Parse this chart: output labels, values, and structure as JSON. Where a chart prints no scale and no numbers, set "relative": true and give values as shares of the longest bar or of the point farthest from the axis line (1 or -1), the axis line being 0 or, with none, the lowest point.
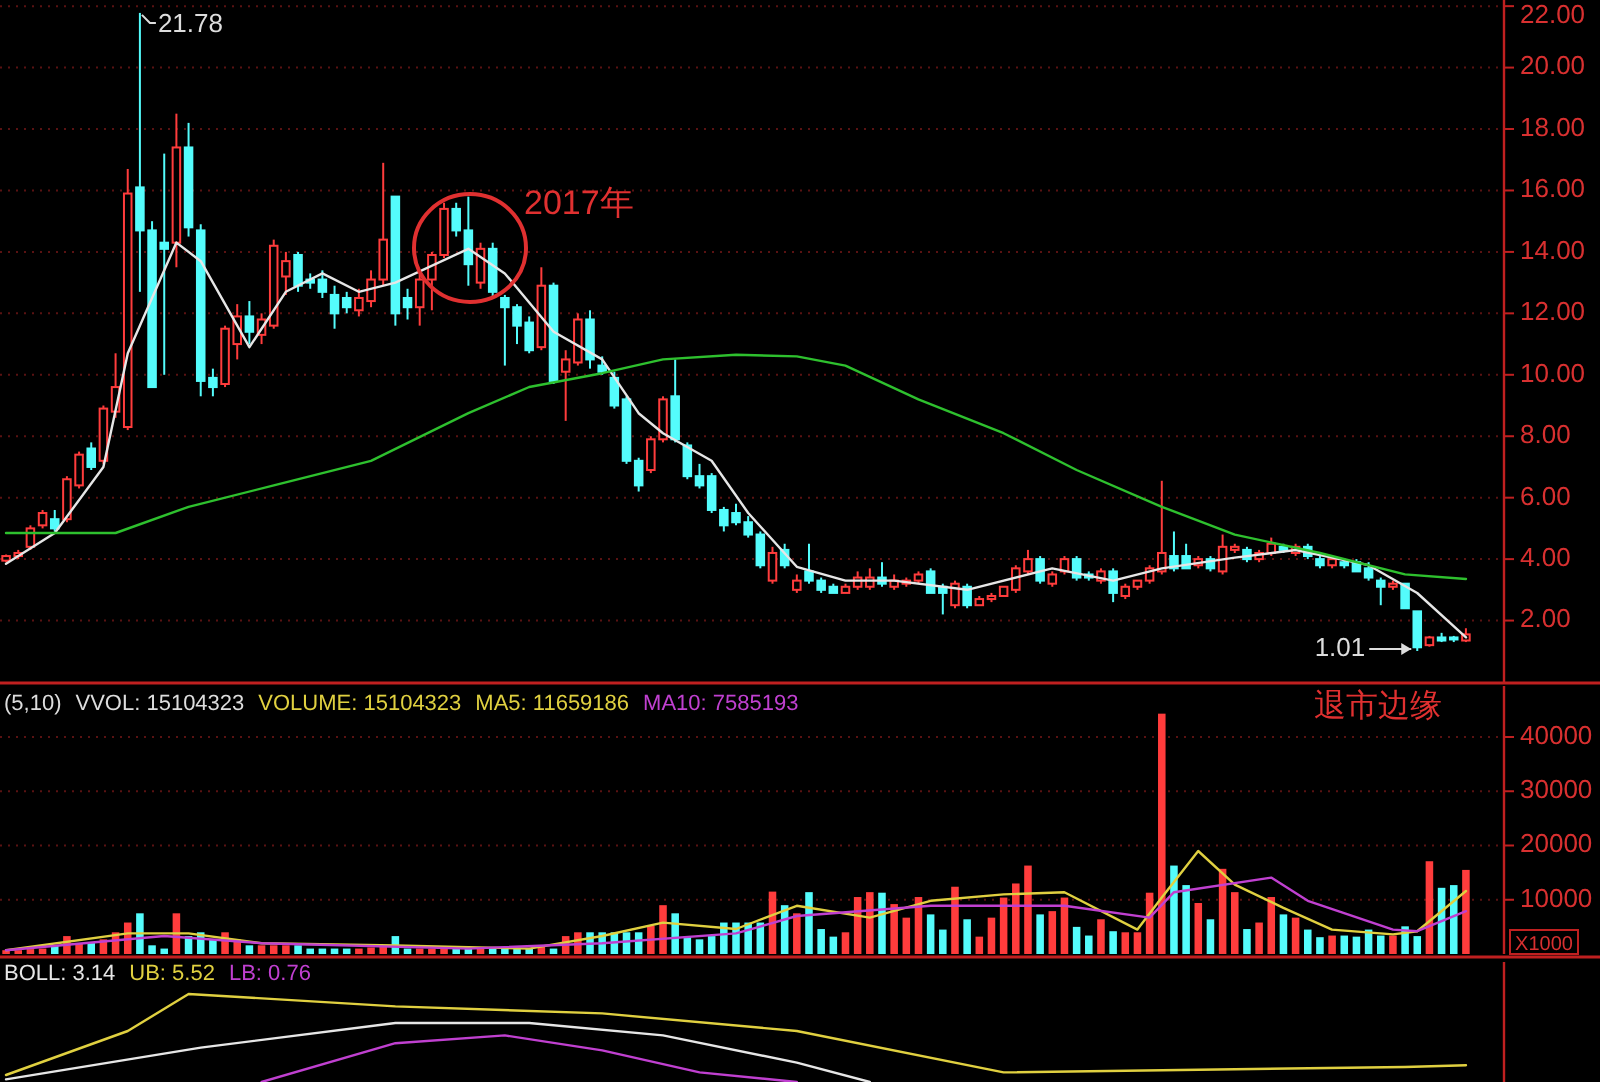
{
  "chart_data": [
    {
      "type": "candlestick",
      "categories": [
        null,
        null,
        null,
        null,
        null,
        null,
        null,
        null,
        null,
        null,
        null,
        null,
        null,
        null,
        null,
        null,
        null,
        null,
        null,
        null,
        null,
        null,
        null,
        null,
        null,
        null,
        null,
        null,
        null,
        null,
        null,
        null,
        null,
        null,
        null,
        null,
        null,
        null,
        null,
        null,
        null,
        null,
        null,
        null,
        null,
        null,
        null,
        null,
        null,
        null,
        null,
        null,
        null,
        null,
        null,
        null,
        null,
        null,
        null,
        null,
        null,
        null,
        null,
        null,
        null,
        null,
        null,
        null,
        null,
        null,
        null,
        null,
        null,
        null,
        null,
        null,
        null,
        null,
        null,
        null,
        null,
        null,
        null,
        null,
        null,
        null,
        null,
        null,
        null,
        null,
        null,
        null,
        null,
        null,
        null,
        null,
        null,
        null,
        null,
        null,
        null,
        null,
        null,
        null,
        null,
        null,
        null,
        null,
        null,
        null,
        null,
        null,
        null,
        null,
        null,
        null,
        null,
        null,
        null,
        null,
        null
      ],
      "ohlc": [
        [
          3.95,
          4.15,
          3.9,
          4.1
        ],
        [
          4.1,
          4.3,
          4.0,
          4.2
        ],
        [
          4.4,
          5.1,
          4.3,
          5.0
        ],
        [
          5.1,
          5.6,
          5.0,
          5.5
        ],
        [
          5.3,
          5.6,
          4.9,
          5.0
        ],
        [
          5.3,
          6.7,
          5.2,
          6.6
        ],
        [
          6.4,
          7.5,
          6.3,
          7.4
        ],
        [
          7.6,
          7.8,
          6.9,
          7.0
        ],
        [
          7.2,
          9.0,
          7.1,
          8.9
        ],
        [
          8.8,
          10.7,
          8.6,
          9.6
        ],
        [
          8.3,
          16.7,
          8.2,
          15.9
        ],
        [
          16.1,
          21.78,
          12.7,
          14.7
        ],
        [
          14.7,
          15.0,
          9.6,
          9.6
        ],
        [
          14.3,
          17.2,
          10.0,
          14.1
        ],
        [
          14.3,
          18.5,
          13.5,
          17.4
        ],
        [
          17.4,
          18.2,
          14.5,
          14.8
        ],
        [
          14.7,
          14.9,
          9.3,
          9.8
        ],
        [
          9.9,
          10.2,
          9.3,
          9.6
        ],
        [
          9.7,
          11.6,
          9.6,
          11.5
        ],
        [
          11.0,
          12.3,
          10.5,
          11.9
        ],
        [
          11.9,
          12.4,
          11.0,
          11.4
        ],
        [
          11.3,
          12.0,
          11.0,
          11.8
        ],
        [
          11.6,
          14.4,
          11.5,
          14.2
        ],
        [
          13.2,
          14.0,
          12.6,
          13.7
        ],
        [
          13.9,
          14.0,
          12.7,
          12.9
        ],
        [
          13.1,
          13.3,
          12.8,
          13.0
        ],
        [
          13.1,
          13.4,
          12.5,
          12.7
        ],
        [
          12.6,
          12.9,
          11.5,
          12.0
        ],
        [
          12.5,
          12.7,
          12.0,
          12.2
        ],
        [
          12.1,
          12.8,
          11.9,
          12.5
        ],
        [
          12.4,
          13.4,
          12.2,
          13.1
        ],
        [
          13.1,
          16.9,
          12.9,
          14.4
        ],
        [
          15.8,
          15.8,
          11.6,
          12.0
        ],
        [
          12.5,
          12.8,
          11.8,
          12.2
        ],
        [
          12.2,
          13.3,
          11.6,
          13.1
        ],
        [
          13.1,
          14.0,
          12.1,
          13.9
        ],
        [
          13.9,
          15.6,
          13.8,
          15.4
        ],
        [
          15.4,
          15.6,
          14.5,
          14.7
        ],
        [
          14.7,
          15.8,
          12.9,
          13.6
        ],
        [
          13.0,
          14.3,
          12.8,
          14.1
        ],
        [
          14.1,
          14.3,
          12.5,
          12.7
        ],
        [
          12.5,
          12.6,
          10.3,
          12.2
        ],
        [
          12.2,
          12.3,
          11.0,
          11.6
        ],
        [
          11.7,
          11.9,
          10.7,
          10.8
        ],
        [
          10.9,
          13.5,
          10.8,
          12.9
        ],
        [
          12.9,
          13.0,
          9.7,
          9.8
        ],
        [
          10.1,
          10.8,
          8.5,
          10.5
        ],
        [
          10.4,
          12.0,
          10.3,
          11.8
        ],
        [
          11.8,
          12.1,
          10.2,
          10.5
        ],
        [
          10.3,
          10.6,
          10.0,
          10.1
        ],
        [
          9.9,
          10.1,
          8.9,
          9.0
        ],
        [
          9.2,
          9.3,
          7.1,
          7.2
        ],
        [
          7.2,
          7.3,
          6.2,
          6.4
        ],
        [
          6.9,
          8.0,
          6.8,
          7.9
        ],
        [
          7.9,
          9.3,
          7.8,
          9.2
        ],
        [
          9.3,
          10.5,
          7.8,
          7.9
        ],
        [
          7.7,
          7.8,
          6.6,
          6.7
        ],
        [
          6.7,
          7.1,
          6.3,
          6.4
        ],
        [
          6.7,
          6.8,
          5.5,
          5.6
        ],
        [
          5.6,
          5.7,
          4.9,
          5.1
        ],
        [
          5.5,
          5.8,
          5.1,
          5.2
        ],
        [
          5.2,
          5.4,
          4.7,
          4.8
        ],
        [
          4.8,
          4.9,
          3.7,
          3.8
        ],
        [
          3.3,
          4.4,
          3.2,
          4.2
        ],
        [
          4.3,
          4.5,
          3.7,
          3.8
        ],
        [
          3.0,
          3.5,
          2.9,
          3.3
        ],
        [
          3.6,
          4.5,
          3.2,
          3.3
        ],
        [
          3.3,
          3.4,
          2.9,
          3.0
        ],
        [
          3.1,
          3.2,
          2.9,
          2.9
        ],
        [
          2.9,
          3.2,
          2.9,
          3.1
        ],
        [
          3.1,
          3.6,
          3.0,
          3.4
        ],
        [
          3.1,
          3.7,
          3.0,
          3.4
        ],
        [
          3.4,
          3.9,
          3.1,
          3.2
        ],
        [
          3.1,
          3.5,
          3.0,
          3.3
        ],
        [
          3.2,
          3.4,
          3.1,
          3.3
        ],
        [
          3.3,
          3.6,
          3.2,
          3.5
        ],
        [
          3.6,
          3.7,
          2.9,
          2.9
        ],
        [
          3.1,
          3.2,
          2.2,
          2.9
        ],
        [
          2.5,
          3.3,
          2.4,
          3.2
        ],
        [
          3.1,
          3.2,
          2.4,
          2.5
        ],
        [
          2.5,
          2.8,
          2.5,
          2.7
        ],
        [
          2.7,
          2.9,
          2.6,
          2.8
        ],
        [
          2.8,
          3.1,
          2.8,
          3.1
        ],
        [
          3.0,
          3.8,
          2.9,
          3.7
        ],
        [
          3.6,
          4.3,
          3.5,
          4.0
        ],
        [
          4.0,
          4.1,
          3.2,
          3.3
        ],
        [
          3.2,
          3.6,
          3.1,
          3.5
        ],
        [
          3.6,
          4.1,
          3.5,
          4.0
        ],
        [
          4.0,
          4.1,
          3.3,
          3.4
        ],
        [
          3.5,
          3.6,
          3.3,
          3.4
        ],
        [
          3.3,
          3.7,
          3.2,
          3.6
        ],
        [
          3.6,
          3.7,
          2.6,
          2.9
        ],
        [
          2.8,
          3.2,
          2.7,
          3.1
        ],
        [
          3.1,
          3.3,
          3.0,
          3.3
        ],
        [
          3.3,
          3.8,
          3.2,
          3.7
        ],
        [
          3.6,
          6.55,
          3.5,
          4.2
        ],
        [
          4.1,
          4.9,
          3.6,
          3.7
        ],
        [
          4.1,
          4.5,
          3.7,
          3.7
        ],
        [
          3.8,
          4.1,
          3.7,
          4.0
        ],
        [
          4.0,
          4.1,
          3.6,
          3.7
        ],
        [
          3.6,
          4.8,
          3.5,
          4.4
        ],
        [
          4.3,
          4.5,
          4.2,
          4.4
        ],
        [
          4.3,
          4.4,
          3.9,
          4.0
        ],
        [
          4.0,
          4.3,
          3.9,
          4.2
        ],
        [
          4.2,
          4.7,
          4.1,
          4.5
        ],
        [
          4.4,
          4.5,
          4.2,
          4.3
        ],
        [
          4.2,
          4.5,
          4.1,
          4.4
        ],
        [
          4.4,
          4.5,
          4.0,
          4.1
        ],
        [
          4.0,
          4.1,
          3.7,
          3.8
        ],
        [
          3.8,
          4.0,
          3.7,
          4.0
        ],
        [
          3.9,
          4.0,
          3.7,
          3.8
        ],
        [
          3.9,
          4.0,
          3.6,
          3.6
        ],
        [
          3.7,
          3.9,
          3.3,
          3.4
        ],
        [
          3.3,
          3.4,
          2.5,
          3.1
        ],
        [
          3.1,
          3.3,
          3.0,
          3.2
        ],
        [
          3.2,
          3.2,
          2.4,
          2.4
        ],
        [
          2.3,
          2.3,
          1.01,
          1.13
        ],
        [
          1.2,
          1.5,
          1.15,
          1.45
        ],
        [
          1.45,
          1.6,
          1.3,
          1.35
        ],
        [
          1.45,
          1.5,
          1.3,
          1.4
        ],
        [
          1.35,
          1.75,
          1.3,
          1.55
        ]
      ],
      "series": [
        {
          "type": "line",
          "color": "#e6e6e6",
          "values": [
            3.85,
            null,
            null,
            null,
            4.85,
            null,
            null,
            null,
            7.0,
            null,
            10.7,
            null,
            null,
            null,
            14.3,
            null,
            13.7,
            null,
            null,
            null,
            10.9,
            null,
            null,
            12.7,
            null,
            null,
            13.3,
            null,
            null,
            12.7,
            null,
            null,
            13.0,
            null,
            null,
            null,
            null,
            null,
            14.1,
            null,
            null,
            13.3,
            null,
            null,
            null,
            11.4,
            null,
            null,
            null,
            10.5,
            null,
            null,
            8.75,
            null,
            8.1,
            null,
            null,
            null,
            7.2,
            null,
            null,
            5.5,
            null,
            null,
            null,
            3.75,
            null,
            null,
            null,
            3.3,
            null,
            null,
            null,
            3.3,
            null,
            null,
            null,
            null,
            null,
            3.0,
            null,
            null,
            null,
            null,
            null,
            null,
            3.7,
            null,
            null,
            null,
            null,
            3.3,
            null,
            null,
            null,
            3.7,
            null,
            null,
            null,
            null,
            null,
            4.05,
            null,
            null,
            null,
            null,
            4.3,
            null,
            null,
            null,
            null,
            null,
            3.8,
            null,
            null,
            null,
            2.9,
            null,
            null,
            null,
            1.45
          ]
        },
        {
          "type": "line",
          "color": "#2ec02e",
          "values": [
            4.85,
            null,
            null,
            null,
            null,
            null,
            null,
            null,
            null,
            4.85,
            null,
            null,
            null,
            null,
            null,
            5.7,
            null,
            null,
            null,
            null,
            null,
            null,
            6.4,
            null,
            null,
            null,
            null,
            null,
            null,
            null,
            7.2,
            null,
            null,
            null,
            null,
            null,
            null,
            null,
            8.75,
            null,
            null,
            null,
            null,
            9.6,
            null,
            null,
            null,
            null,
            null,
            10.05,
            null,
            null,
            null,
            null,
            10.5,
            null,
            null,
            null,
            null,
            null,
            10.65,
            null,
            null,
            null,
            null,
            10.6,
            null,
            null,
            null,
            10.3,
            null,
            null,
            null,
            null,
            null,
            9.2,
            null,
            null,
            null,
            null,
            null,
            null,
            8.1,
            null,
            null,
            null,
            null,
            null,
            6.9,
            null,
            null,
            null,
            null,
            null,
            null,
            5.7,
            null,
            null,
            null,
            null,
            null,
            4.8,
            null,
            null,
            null,
            null,
            null,
            null,
            4.2,
            null,
            null,
            null,
            null,
            null,
            null,
            3.5,
            null,
            null,
            null,
            null,
            3.35
          ]
        }
      ],
      "ylim": [
        0,
        22.2
      ],
      "yticks": [
        {
          "value": 2,
          "label": "2.00"
        },
        {
          "value": 4,
          "label": "4.00"
        },
        {
          "value": 6,
          "label": "6.00"
        },
        {
          "value": 8,
          "label": "8.00"
        },
        {
          "value": 10,
          "label": "10.00"
        },
        {
          "value": 12,
          "label": "12.00"
        },
        {
          "value": 14,
          "label": "14.00"
        },
        {
          "value": 16,
          "label": "16.00"
        },
        {
          "value": 18,
          "label": "18.00"
        },
        {
          "value": 20,
          "label": "20.00"
        },
        {
          "value": 22,
          "label": "22.00"
        }
      ],
      "grid": "y",
      "annotations": [
        "21.78",
        "1.01",
        "2017年"
      ]
    },
    {
      "type": "bar",
      "title": "(5,10)",
      "categories": [
        null,
        null,
        null,
        null,
        null,
        null,
        null,
        null,
        null,
        null,
        null,
        null,
        null,
        null,
        null,
        null,
        null,
        null,
        null,
        null,
        null,
        null,
        null,
        null,
        null,
        null,
        null,
        null,
        null,
        null,
        null,
        null,
        null,
        null,
        null,
        null,
        null,
        null,
        null,
        null,
        null,
        null,
        null,
        null,
        null,
        null,
        null,
        null,
        null,
        null,
        null,
        null,
        null,
        null,
        null,
        null,
        null,
        null,
        null,
        null,
        null,
        null,
        null,
        null,
        null,
        null,
        null,
        null,
        null,
        null,
        null,
        null,
        null,
        null,
        null,
        null,
        null,
        null,
        null,
        null,
        null,
        null,
        null,
        null,
        null,
        null,
        null,
        null,
        null,
        null,
        null,
        null,
        null,
        null,
        null,
        null,
        null,
        null,
        null,
        null,
        null,
        null,
        null,
        null,
        null,
        null,
        null,
        null,
        null,
        null,
        null,
        null,
        null,
        null,
        null,
        null,
        null,
        null,
        null,
        null,
        null
      ],
      "series": [
        {
          "type": "bar",
          "values": [
            700,
            700,
            900,
            1000,
            1600,
            3300,
            2000,
            2000,
            2700,
            4000,
            5800,
            7500,
            1600,
            1000,
            7500,
            3300,
            4000,
            2700,
            4000,
            2700,
            1600,
            1600,
            1600,
            1600,
            1600,
            1000,
            1000,
            1000,
            1000,
            1000,
            1200,
            1600,
            3300,
            1000,
            1000,
            1000,
            1000,
            1000,
            1000,
            1000,
            1000,
            1000,
            1000,
            1000,
            1600,
            1000,
            3300,
            4000,
            4000,
            4000,
            4000,
            4000,
            4000,
            5200,
            9000,
            7500,
            3300,
            2700,
            3300,
            5800,
            5800,
            5800,
            5800,
            11500,
            9000,
            7500,
            11400,
            4600,
            3200,
            4000,
            10500,
            11400,
            11300,
            9200,
            6700,
            10500,
            7300,
            4500,
            12400,
            6400,
            3200,
            6700,
            10400,
            13000,
            16300,
            7300,
            7900,
            10400,
            5000,
            3400,
            6400,
            4200,
            4000,
            4000,
            11300,
            44300,
            16300,
            12700,
            9400,
            6400,
            15700,
            11400,
            4600,
            5800,
            10500,
            7300,
            6700,
            4500,
            3100,
            3400,
            3400,
            3200,
            4500,
            3400,
            3400,
            5100,
            3300,
            17100,
            12200,
            12700,
            15500
          ],
          "colors": [
            "#ff3c3c",
            "#ff3c3c",
            "#ff3c3c",
            "#ff3c3c",
            "#54fcfc",
            "#ff3c3c",
            "#ff3c3c",
            "#54fcfc",
            "#ff3c3c",
            "#ff3c3c",
            "#ff3c3c",
            "#54fcfc",
            "#54fcfc",
            "#54fcfc",
            "#ff3c3c",
            "#54fcfc",
            "#54fcfc",
            "#54fcfc",
            "#ff3c3c",
            "#ff3c3c",
            "#54fcfc",
            "#ff3c3c",
            "#ff3c3c",
            "#ff3c3c",
            "#54fcfc",
            "#54fcfc",
            "#54fcfc",
            "#54fcfc",
            "#54fcfc",
            "#ff3c3c",
            "#ff3c3c",
            "#ff3c3c",
            "#54fcfc",
            "#54fcfc",
            "#ff3c3c",
            "#ff3c3c",
            "#ff3c3c",
            "#54fcfc",
            "#54fcfc",
            "#ff3c3c",
            "#54fcfc",
            "#54fcfc",
            "#54fcfc",
            "#54fcfc",
            "#ff3c3c",
            "#54fcfc",
            "#ff3c3c",
            "#ff3c3c",
            "#54fcfc",
            "#54fcfc",
            "#54fcfc",
            "#54fcfc",
            "#54fcfc",
            "#ff3c3c",
            "#ff3c3c",
            "#54fcfc",
            "#54fcfc",
            "#54fcfc",
            "#54fcfc",
            "#54fcfc",
            "#54fcfc",
            "#54fcfc",
            "#54fcfc",
            "#ff3c3c",
            "#54fcfc",
            "#ff3c3c",
            "#54fcfc",
            "#54fcfc",
            "#54fcfc",
            "#ff3c3c",
            "#ff3c3c",
            "#ff3c3c",
            "#54fcfc",
            "#ff3c3c",
            "#ff3c3c",
            "#ff3c3c",
            "#54fcfc",
            "#54fcfc",
            "#ff3c3c",
            "#54fcfc",
            "#ff3c3c",
            "#ff3c3c",
            "#ff3c3c",
            "#ff3c3c",
            "#ff3c3c",
            "#54fcfc",
            "#ff3c3c",
            "#ff3c3c",
            "#54fcfc",
            "#54fcfc",
            "#ff3c3c",
            "#54fcfc",
            "#ff3c3c",
            "#ff3c3c",
            "#ff3c3c",
            "#ff3c3c",
            "#54fcfc",
            "#54fcfc",
            "#ff3c3c",
            "#54fcfc",
            "#ff3c3c",
            "#ff3c3c",
            "#54fcfc",
            "#ff3c3c",
            "#ff3c3c",
            "#54fcfc",
            "#ff3c3c",
            "#54fcfc",
            "#54fcfc",
            "#ff3c3c",
            "#54fcfc",
            "#54fcfc",
            "#54fcfc",
            "#54fcfc",
            "#ff3c3c",
            "#54fcfc",
            "#54fcfc",
            "#ff3c3c",
            "#54fcfc",
            "#54fcfc",
            "#ff3c3c"
          ]
        },
        {
          "type": "line",
          "name": "MA5: 11659186",
          "color": "#e0d040",
          "values": [
            700,
            null,
            null,
            null,
            null,
            null,
            null,
            null,
            null,
            null,
            3800,
            null,
            null,
            null,
            null,
            3800,
            null,
            null,
            null,
            null,
            null,
            2000,
            null,
            null,
            null,
            null,
            null,
            null,
            null,
            null,
            null,
            null,
            1600,
            null,
            null,
            null,
            null,
            null,
            null,
            null,
            null,
            null,
            null,
            1000,
            null,
            null,
            null,
            null,
            null,
            3300,
            null,
            null,
            null,
            null,
            5800,
            null,
            null,
            null,
            null,
            null,
            4600,
            null,
            null,
            null,
            null,
            8900,
            null,
            null,
            null,
            null,
            null,
            6700,
            null,
            null,
            null,
            null,
            9800,
            null,
            null,
            null,
            null,
            null,
            11000,
            null,
            null,
            null,
            null,
            11400,
            null,
            null,
            null,
            null,
            null,
            4500,
            null,
            10400,
            null,
            null,
            19000,
            null,
            null,
            12800,
            null,
            null,
            null,
            8500,
            null,
            null,
            null,
            4500,
            null,
            null,
            null,
            null,
            3600,
            null,
            4200,
            null,
            null,
            null,
            11600
          ]
        },
        {
          "type": "line",
          "name": "MA10: 7585193",
          "color": "#c040d0",
          "values": [
            700,
            null,
            null,
            null,
            null,
            null,
            null,
            null,
            null,
            null,
            null,
            null,
            null,
            3300,
            null,
            null,
            null,
            null,
            null,
            null,
            null,
            2000,
            null,
            null,
            null,
            null,
            null,
            null,
            null,
            null,
            null,
            null,
            null,
            null,
            null,
            null,
            null,
            null,
            1000,
            null,
            null,
            null,
            null,
            null,
            null,
            null,
            null,
            null,
            null,
            2000,
            null,
            null,
            null,
            null,
            null,
            null,
            null,
            null,
            null,
            null,
            3800,
            null,
            null,
            null,
            null,
            7000,
            null,
            null,
            null,
            null,
            null,
            null,
            null,
            null,
            null,
            null,
            8900,
            null,
            null,
            null,
            null,
            null,
            null,
            null,
            null,
            null,
            null,
            8900,
            null,
            null,
            null,
            null,
            null,
            null,
            6700,
            null,
            11400,
            null,
            null,
            null,
            null,
            null,
            null,
            null,
            14100,
            null,
            null,
            9800,
            null,
            null,
            null,
            null,
            null,
            null,
            4500,
            null,
            4200,
            null,
            null,
            null,
            7900
          ]
        }
      ],
      "ylim": [
        0,
        49400
      ],
      "yticks": [
        10000,
        20000,
        30000,
        40000
      ],
      "ylabel": "X1000",
      "grid": "y",
      "annotations": [
        "VVOL: 15104323",
        "VOLUME: 15104323",
        "退市边缘"
      ]
    },
    {
      "type": "line",
      "relative": true,
      "categories": [
        null,
        null,
        null,
        null,
        null,
        null,
        null,
        null,
        null,
        null,
        null,
        null,
        null,
        null,
        null,
        null,
        null,
        null,
        null,
        null,
        null,
        null,
        null,
        null,
        null,
        null,
        null,
        null,
        null,
        null,
        null,
        null,
        null,
        null,
        null,
        null,
        null,
        null,
        null,
        null,
        null,
        null,
        null,
        null,
        null,
        null,
        null,
        null,
        null,
        null,
        null,
        null,
        null,
        null,
        null,
        null,
        null,
        null,
        null,
        null,
        null,
        null,
        null,
        null,
        null,
        null,
        null,
        null,
        null,
        null,
        null,
        null,
        null,
        null,
        null,
        null,
        null,
        null,
        null,
        null,
        null,
        null,
        null,
        null,
        null,
        null,
        null,
        null,
        null,
        null,
        null,
        null,
        null,
        null,
        null,
        null,
        null,
        null,
        null,
        null,
        null,
        null,
        null,
        null,
        null,
        null,
        null,
        null,
        null,
        null,
        null,
        null,
        null,
        null,
        null,
        null,
        null,
        null,
        null,
        null,
        null
      ],
      "series": [
        {
          "name": "BOLL: 3.14",
          "color": "#e6e6e6",
          "values": [
            0.03,
            null,
            null,
            null,
            null,
            null,
            null,
            null,
            null,
            null,
            null,
            null,
            null,
            null,
            null,
            null,
            0.39,
            null,
            null,
            null,
            null,
            null,
            null,
            null,
            null,
            null,
            null,
            null,
            null,
            null,
            null,
            null,
            0.67,
            null,
            null,
            null,
            null,
            null,
            null,
            null,
            null,
            null,
            null,
            0.67,
            null,
            null,
            null,
            null,
            null,
            null,
            null,
            null,
            null,
            null,
            0.53,
            null,
            null,
            null,
            null,
            null,
            null,
            null,
            null,
            null,
            null,
            0.22,
            null,
            null,
            null,
            null,
            null,
            0,
            null,
            null,
            null,
            null,
            null,
            null,
            null,
            null,
            null,
            null,
            null,
            null,
            null,
            null,
            null,
            null,
            null,
            null,
            null,
            null,
            null,
            null,
            null,
            null,
            null,
            null,
            null,
            null,
            null,
            null,
            null,
            null,
            null,
            null,
            null,
            null,
            null,
            null,
            null,
            null,
            null,
            null,
            null,
            null,
            null,
            null,
            null,
            null,
            null
          ]
        },
        {
          "name": "UB: 5.52",
          "color": "#e0d040",
          "values": [
            0.08,
            null,
            null,
            null,
            null,
            null,
            null,
            null,
            null,
            null,
            0.58,
            null,
            null,
            null,
            null,
            1,
            null,
            null,
            null,
            null,
            null,
            null,
            null,
            null,
            null,
            null,
            null,
            null,
            null,
            null,
            null,
            null,
            0.86,
            null,
            null,
            null,
            null,
            null,
            null,
            null,
            null,
            null,
            null,
            null,
            null,
            null,
            null,
            null,
            null,
            0.78,
            null,
            null,
            null,
            null,
            null,
            null,
            null,
            null,
            null,
            null,
            null,
            null,
            null,
            null,
            null,
            0.58,
            null,
            null,
            null,
            null,
            null,
            null,
            null,
            null,
            null,
            null,
            null,
            null,
            null,
            null,
            null,
            null,
            0.11,
            null,
            null,
            null,
            null,
            null,
            null,
            null,
            null,
            null,
            null,
            null,
            null,
            null,
            null,
            null,
            null,
            null,
            null,
            null,
            null,
            null,
            null,
            null,
            null,
            null,
            null,
            null,
            null,
            null,
            null,
            null,
            null,
            0.17,
            null,
            null,
            null,
            null,
            0.19
          ]
        },
        {
          "name": "LB: 0.76",
          "color": "#c040d0",
          "values": [
            null,
            null,
            null,
            null,
            null,
            null,
            null,
            null,
            null,
            null,
            null,
            null,
            null,
            null,
            null,
            null,
            null,
            null,
            null,
            null,
            null,
            0,
            null,
            null,
            null,
            null,
            null,
            null,
            null,
            null,
            null,
            null,
            0.44,
            null,
            null,
            null,
            null,
            null,
            null,
            null,
            null,
            0.53,
            null,
            null,
            null,
            null,
            null,
            null,
            null,
            0.36,
            null,
            null,
            null,
            null,
            null,
            null,
            null,
            0.11,
            null,
            null,
            null,
            null,
            null,
            null,
            null,
            0,
            null,
            null,
            null,
            null,
            null,
            null,
            null,
            null,
            null,
            null,
            null,
            null,
            null,
            null,
            null,
            null,
            null,
            null,
            null,
            null,
            null,
            null,
            null,
            null,
            null,
            null,
            null,
            null,
            null,
            null,
            null,
            null,
            null,
            null,
            null,
            null,
            null,
            null,
            null,
            null,
            null,
            null,
            null,
            null,
            null,
            null,
            null,
            null,
            null,
            null,
            null,
            null,
            null,
            null,
            null
          ]
        }
      ]
    }
  ]
}
